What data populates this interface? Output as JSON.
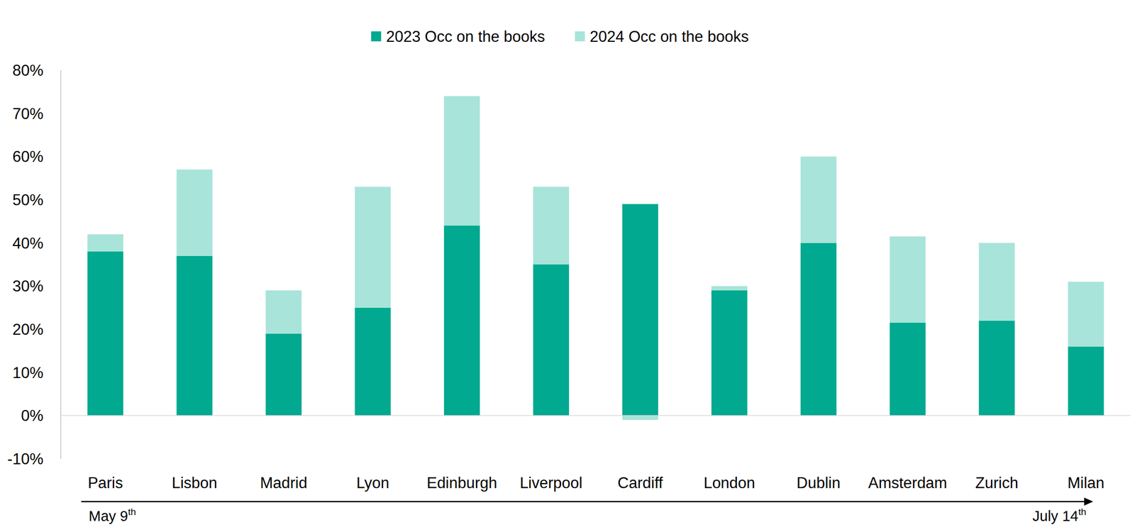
{
  "chart_data": {
    "type": "bar",
    "stacked": true,
    "grid": false,
    "legend": "top",
    "categories": [
      "Paris",
      "Lisbon",
      "Madrid",
      "Lyon",
      "Edinburgh",
      "Liverpool",
      "Cardiff",
      "London",
      "Dublin",
      "Amsterdam",
      "Zurich",
      "Milan"
    ],
    "series": [
      {
        "name": "2023 Occ on the books",
        "color": "#00A98F",
        "values": [
          38,
          37,
          19,
          25,
          44,
          35,
          49,
          29,
          40,
          21.5,
          22,
          16
        ]
      },
      {
        "name": "2024 Occ on the books",
        "color": "#A8E4D9",
        "values": [
          4,
          20,
          10,
          28,
          30,
          18,
          -1,
          1,
          20,
          20,
          18,
          15
        ]
      }
    ],
    "ylim": [
      -10,
      80
    ],
    "yticks": [
      {
        "value": -10,
        "label": "-10%"
      },
      {
        "value": 0,
        "label": "0%"
      },
      {
        "value": 10,
        "label": "10%"
      },
      {
        "value": 20,
        "label": "20%"
      },
      {
        "value": 30,
        "label": "30%"
      },
      {
        "value": 40,
        "label": "40%"
      },
      {
        "value": 50,
        "label": "50%"
      },
      {
        "value": 60,
        "label": "60%"
      },
      {
        "value": 70,
        "label": "70%"
      },
      {
        "value": 80,
        "label": "80%"
      }
    ],
    "annotations": [
      "May 9th",
      "July 14th"
    ]
  }
}
